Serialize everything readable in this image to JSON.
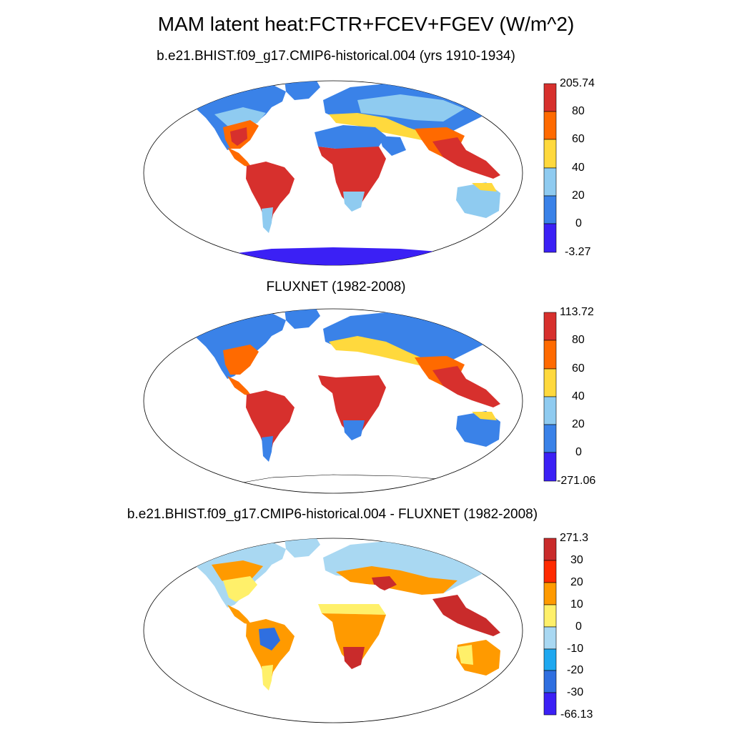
{
  "figure": {
    "title": "MAM latent heat:FCTR+FCEV+FGEV (W/m^2)"
  },
  "panels": [
    {
      "id": "model",
      "subtitle": "b.e21.BHIST.f09_g17.CMIP6-historical.004 (yrs 1910-1934)",
      "colorbar": {
        "labels": [
          "205.74",
          "80",
          "60",
          "40",
          "20",
          "0",
          "-3.27"
        ],
        "colors": [
          "#d7302d",
          "#ff6a00",
          "#ffd93d",
          "#8fcbf0",
          "#3a82e8",
          "#3b20f5"
        ]
      }
    },
    {
      "id": "obs",
      "subtitle": "FLUXNET (1982-2008)",
      "colorbar": {
        "labels": [
          "113.72",
          "80",
          "60",
          "40",
          "20",
          "0",
          "-271.06"
        ],
        "colors": [
          "#d7302d",
          "#ff6a00",
          "#ffd93d",
          "#8fcbf0",
          "#3a82e8",
          "#3b20f5"
        ]
      }
    },
    {
      "id": "diff",
      "subtitle": "b.e21.BHIST.f09_g17.CMIP6-historical.004 - FLUXNET (1982-2008)",
      "colorbar": {
        "labels": [
          "271.3",
          "30",
          "20",
          "10",
          "0",
          "-10",
          "-20",
          "-30",
          "-66.13"
        ],
        "colors": [
          "#c92b2b",
          "#ff2a00",
          "#ff9a00",
          "#fff06a",
          "#a9d8f2",
          "#1ea8f0",
          "#2f6fe0",
          "#3b20f5"
        ]
      }
    }
  ]
}
